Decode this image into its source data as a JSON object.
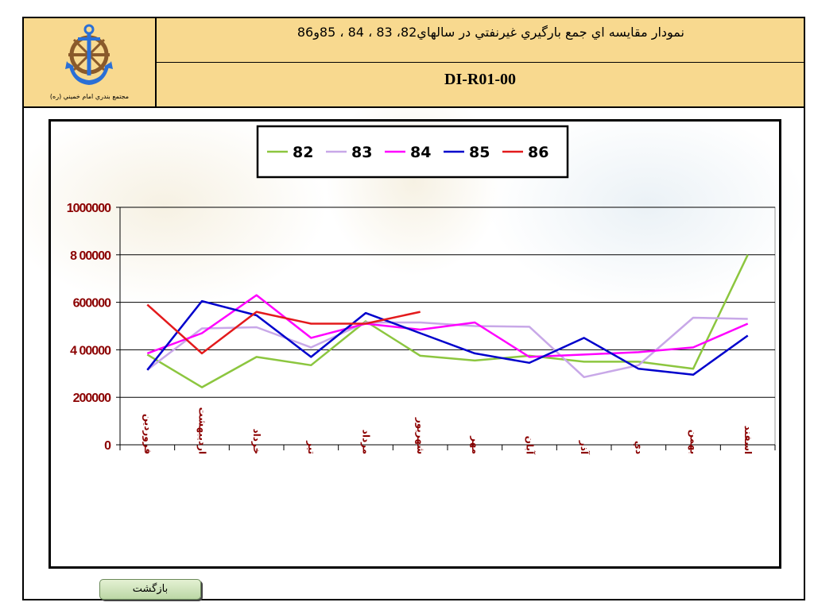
{
  "header": {
    "logo_caption": "مجتمع بندري امام خميني (ره)",
    "title": "نمودار مقايسه اي جمع بارگيري غيرنفتي در سالهاي82، 83 ، 84 ، 85و86",
    "code": "DI-R01-00"
  },
  "back_button": "بازگشت",
  "chart_data": {
    "type": "line",
    "title": "",
    "xlabel": "",
    "ylabel": "",
    "ylim": [
      0,
      1000000
    ],
    "yticks": [
      0,
      200000,
      400000,
      600000,
      800000,
      1000000
    ],
    "ytick_labels": [
      "0",
      "200000",
      "4 00000",
      "600000",
      "8 00000",
      "1000000"
    ],
    "grid": "horizontal",
    "legend_position": "top",
    "categories": [
      "فروردين",
      "ارديبهشت",
      "خرداد",
      "تير",
      "مرداد",
      "شهريور",
      "مهر",
      "آبان",
      "آذر",
      "دي",
      "بهمن",
      "اسفند"
    ],
    "series": [
      {
        "name": "82",
        "color": "#8cc63f",
        "values": [
          380000,
          242000,
          370000,
          335000,
          520000,
          375000,
          355000,
          375000,
          350000,
          350000,
          320000,
          800000
        ]
      },
      {
        "name": "83",
        "color": "#c8a8e8",
        "values": [
          315000,
          490000,
          495000,
          410000,
          515000,
          515000,
          500000,
          497000,
          285000,
          335000,
          535000,
          530000
        ]
      },
      {
        "name": "84",
        "color": "#ff00ff",
        "values": [
          385000,
          470000,
          630000,
          450000,
          510000,
          485000,
          515000,
          370000,
          380000,
          390000,
          410000,
          510000
        ]
      },
      {
        "name": "85",
        "color": "#0000cc",
        "values": [
          315000,
          605000,
          545000,
          370000,
          555000,
          470000,
          385000,
          345000,
          450000,
          320000,
          295000,
          460000
        ]
      },
      {
        "name": "86",
        "color": "#e31a1c",
        "values": [
          590000,
          385000,
          560000,
          510000,
          510000,
          560000,
          null,
          null,
          null,
          null,
          null,
          null
        ]
      }
    ]
  }
}
